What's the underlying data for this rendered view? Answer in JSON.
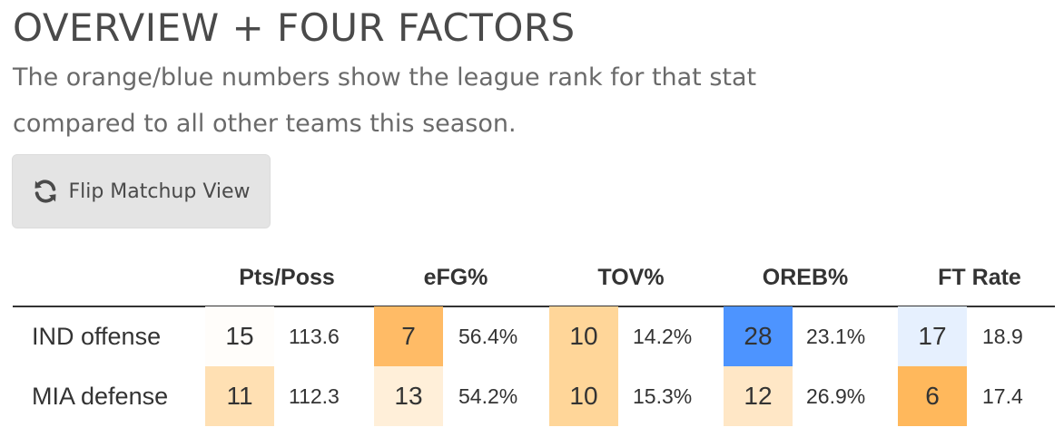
{
  "header": {
    "title": "OVERVIEW + FOUR FACTORS",
    "subtitle": "The orange/blue numbers show the league rank for that stat compared to all other teams this season."
  },
  "flip_button": {
    "label": "Flip Matchup View",
    "icon": "refresh-icon"
  },
  "table": {
    "columns": [
      "Pts/Poss",
      "eFG%",
      "TOV%",
      "OREB%",
      "FT Rate"
    ],
    "rows": [
      {
        "label": "IND offense",
        "cells": [
          {
            "rank": "15",
            "value": "113.6",
            "color": "#fffdfa"
          },
          {
            "rank": "7",
            "value": "56.4%",
            "color": "#ffbb66"
          },
          {
            "rank": "10",
            "value": "14.2%",
            "color": "#ffd699"
          },
          {
            "rank": "28",
            "value": "23.1%",
            "color": "#4d94ff"
          },
          {
            "rank": "17",
            "value": "18.9",
            "color": "#e6f0fe"
          }
        ]
      },
      {
        "label": "MIA defense",
        "cells": [
          {
            "rank": "11",
            "value": "112.3",
            "color": "#ffe0b3"
          },
          {
            "rank": "13",
            "value": "54.2%",
            "color": "#ffefd9"
          },
          {
            "rank": "10",
            "value": "15.3%",
            "color": "#ffd699"
          },
          {
            "rank": "12",
            "value": "26.9%",
            "color": "#ffe7c6"
          },
          {
            "rank": "6",
            "value": "17.4",
            "color": "#ffb85c"
          }
        ]
      }
    ]
  }
}
